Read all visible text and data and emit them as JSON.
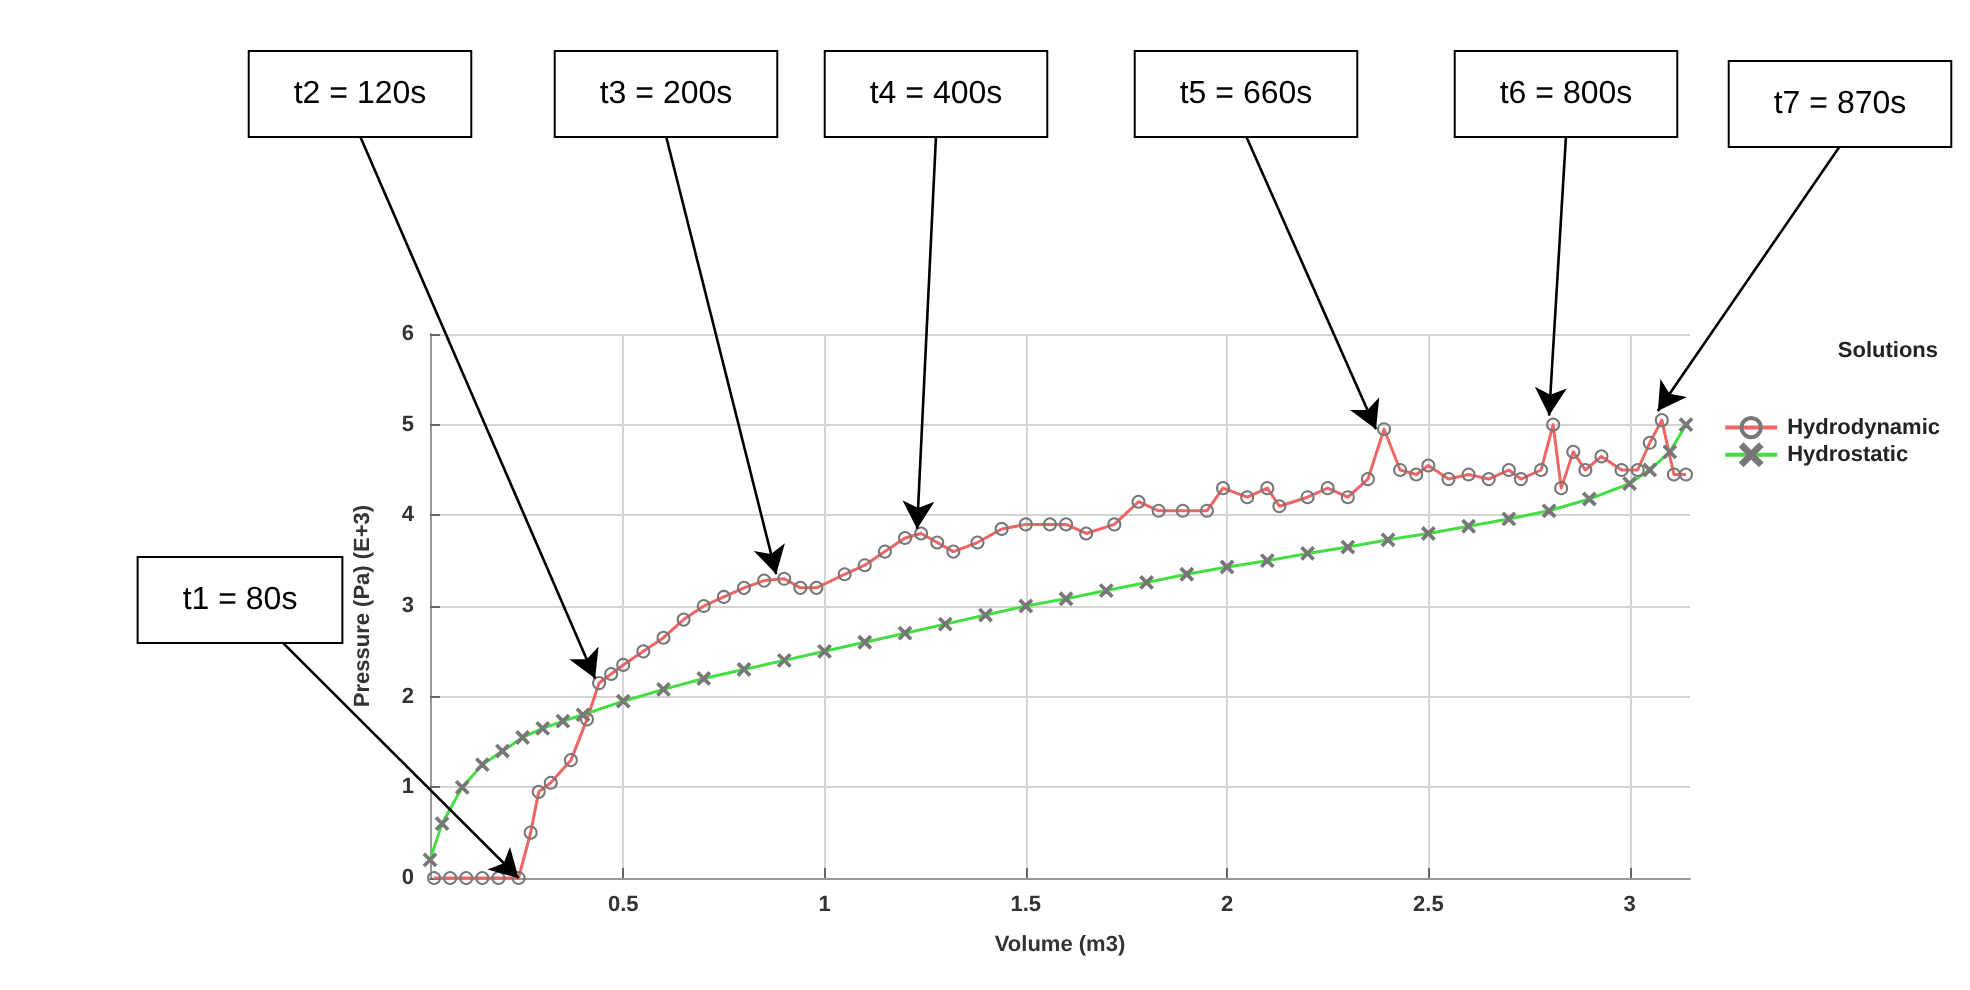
{
  "chart_data": {
    "type": "line",
    "xlabel": "Volume (m3)",
    "ylabel": "Pressure (Pa) (E+3)",
    "legend_title": "Solutions",
    "legend": "top right",
    "xlim": [
      0.02,
      3.15
    ],
    "xticks": [
      0.5,
      1,
      1.5,
      2,
      2.5,
      3
    ],
    "ylim": [
      0,
      6
    ],
    "yticks": [
      0,
      1,
      2,
      3,
      4,
      5,
      6
    ],
    "grid": true,
    "series": [
      {
        "name": "Hydrodynamic",
        "color": "#f06464",
        "marker": "circle",
        "x": [
          0.03,
          0.07,
          0.11,
          0.15,
          0.19,
          0.24,
          0.27,
          0.29,
          0.32,
          0.37,
          0.41,
          0.44,
          0.47,
          0.5,
          0.55,
          0.6,
          0.65,
          0.7,
          0.75,
          0.8,
          0.85,
          0.9,
          0.94,
          0.98,
          1.05,
          1.1,
          1.15,
          1.2,
          1.24,
          1.28,
          1.32,
          1.38,
          1.44,
          1.5,
          1.56,
          1.6,
          1.65,
          1.72,
          1.78,
          1.83,
          1.89,
          1.95,
          1.99,
          2.05,
          2.1,
          2.13,
          2.2,
          2.25,
          2.3,
          2.35,
          2.39,
          2.43,
          2.47,
          2.5,
          2.55,
          2.6,
          2.65,
          2.7,
          2.73,
          2.78,
          2.81,
          2.83,
          2.86,
          2.89,
          2.93,
          2.98,
          3.02,
          3.05,
          3.08,
          3.11,
          3.14
        ],
        "values": [
          0,
          0,
          0,
          0,
          0,
          0,
          0.5,
          0.95,
          1.05,
          1.3,
          1.75,
          2.15,
          2.25,
          2.35,
          2.5,
          2.65,
          2.85,
          3.0,
          3.1,
          3.2,
          3.28,
          3.3,
          3.2,
          3.2,
          3.35,
          3.45,
          3.6,
          3.75,
          3.8,
          3.7,
          3.6,
          3.7,
          3.85,
          3.9,
          3.9,
          3.9,
          3.8,
          3.9,
          4.15,
          4.05,
          4.05,
          4.05,
          4.3,
          4.2,
          4.3,
          4.1,
          4.2,
          4.3,
          4.2,
          4.4,
          4.95,
          4.5,
          4.45,
          4.55,
          4.4,
          4.45,
          4.4,
          4.5,
          4.4,
          4.5,
          5.0,
          4.3,
          4.7,
          4.5,
          4.65,
          4.5,
          4.5,
          4.8,
          5.05,
          4.45,
          4.45
        ]
      },
      {
        "name": "Hydrostatic",
        "color": "#44dd44",
        "marker": "cross",
        "x": [
          0.02,
          0.05,
          0.1,
          0.15,
          0.2,
          0.25,
          0.3,
          0.35,
          0.4,
          0.5,
          0.6,
          0.7,
          0.8,
          0.9,
          1.0,
          1.1,
          1.2,
          1.3,
          1.4,
          1.5,
          1.6,
          1.7,
          1.8,
          1.9,
          2.0,
          2.1,
          2.2,
          2.3,
          2.4,
          2.5,
          2.6,
          2.7,
          2.8,
          2.9,
          3.0,
          3.05,
          3.1,
          3.14
        ],
        "values": [
          0.2,
          0.6,
          1.0,
          1.25,
          1.4,
          1.55,
          1.65,
          1.73,
          1.8,
          1.95,
          2.08,
          2.2,
          2.3,
          2.4,
          2.5,
          2.6,
          2.7,
          2.8,
          2.9,
          3.0,
          3.08,
          3.17,
          3.26,
          3.35,
          3.43,
          3.5,
          3.58,
          3.65,
          3.73,
          3.8,
          3.88,
          3.96,
          4.05,
          4.18,
          4.35,
          4.5,
          4.7,
          5.0
        ]
      }
    ],
    "annotations": [
      {
        "text": "t1 = 80s",
        "x": 0.24,
        "y": 0
      },
      {
        "text": "t2 = 120s",
        "x": 0.43,
        "y": 2.2
      },
      {
        "text": "t3 = 200s",
        "x": 0.88,
        "y": 3.35
      },
      {
        "text": "t4 = 400s",
        "x": 1.23,
        "y": 3.85
      },
      {
        "text": "t5 = 660s",
        "x": 2.37,
        "y": 4.95
      },
      {
        "text": "t6 = 800s",
        "x": 2.8,
        "y": 5.1
      },
      {
        "text": "t7 = 870s",
        "x": 3.07,
        "y": 5.15
      }
    ]
  }
}
